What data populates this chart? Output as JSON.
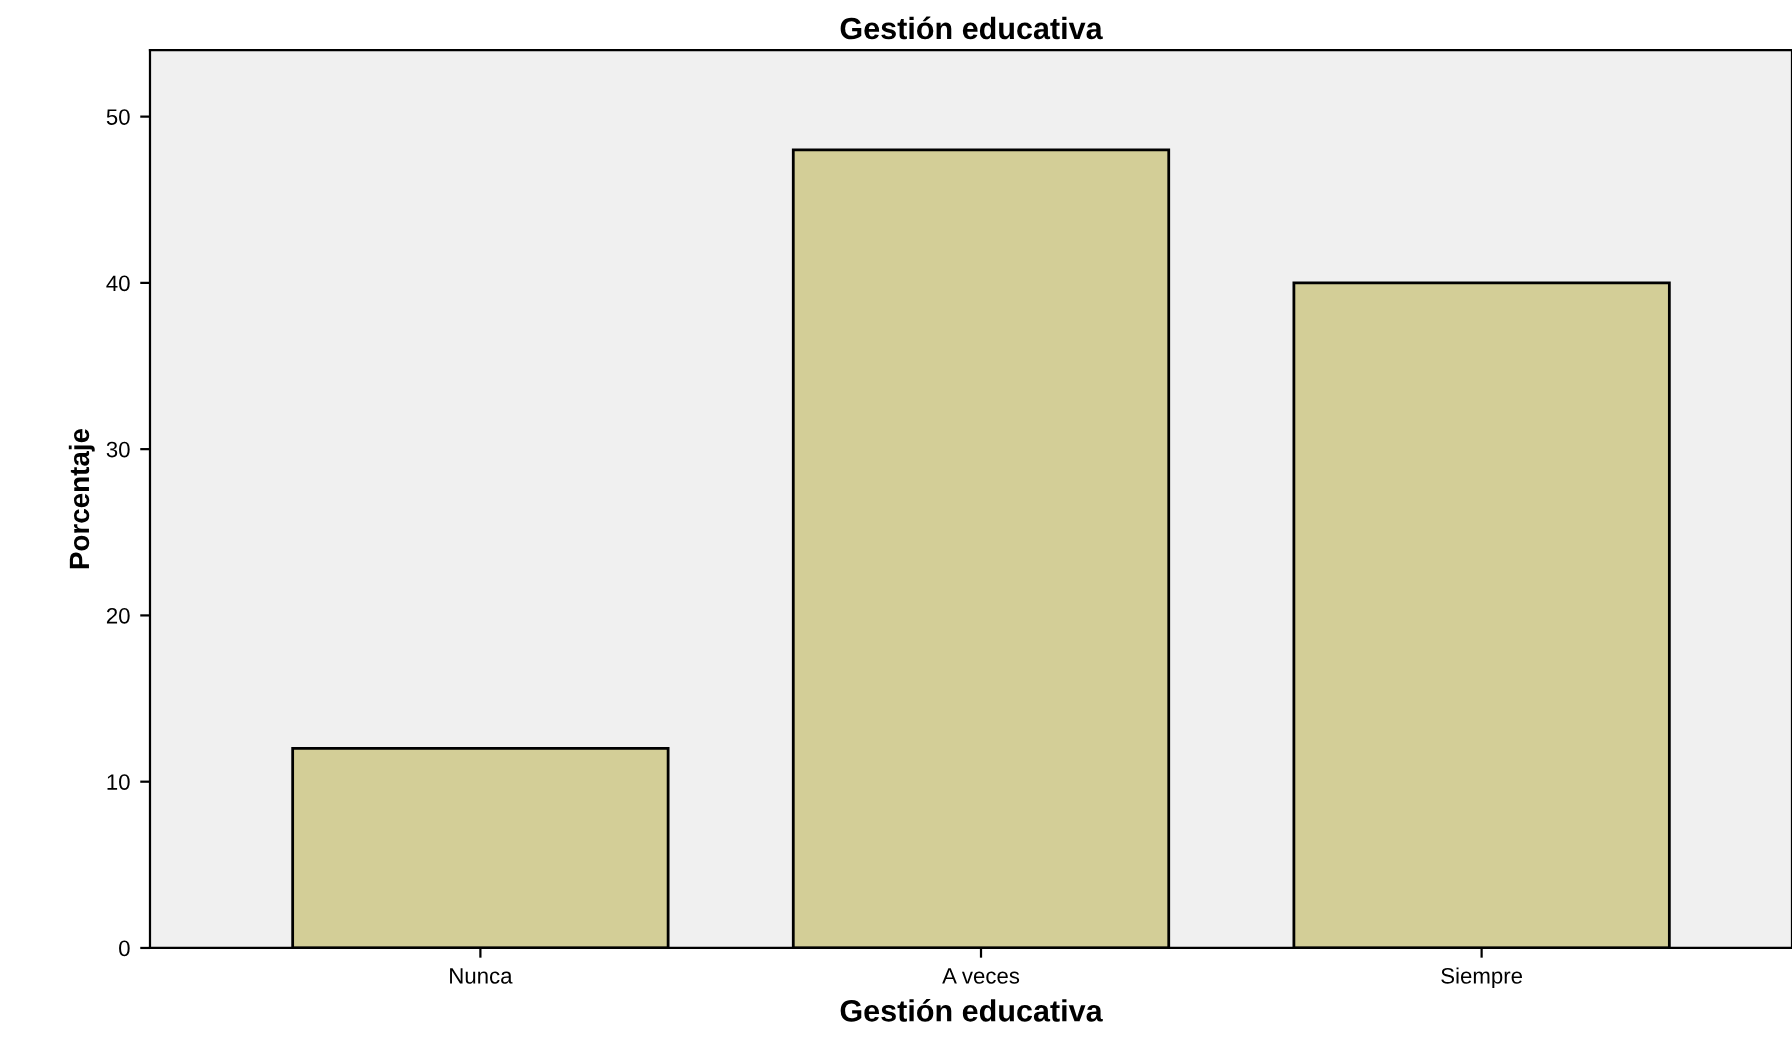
{
  "chart_data": {
    "type": "bar",
    "title": "Gestión educativa",
    "xlabel": "Gestión educativa",
    "ylabel": "Porcentaje",
    "categories": [
      "Nunca",
      "A veces",
      "Siempre"
    ],
    "series": [
      {
        "color": "#d3ce97",
        "values": [
          12,
          48,
          40
        ]
      }
    ],
    "ylim": [
      0,
      54
    ],
    "yticks": [
      0,
      10,
      20,
      30,
      40,
      50
    ],
    "grid": false,
    "legend": false
  }
}
